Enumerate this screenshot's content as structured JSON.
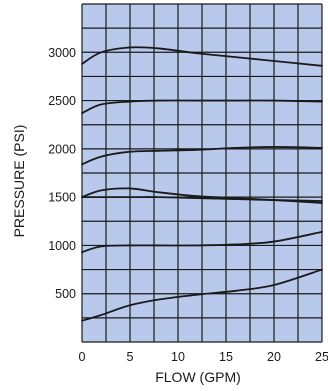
{
  "chart_data": {
    "type": "line",
    "title": "",
    "xlabel": "FLOW (GPM)",
    "ylabel": "PRESSURE (PSI)",
    "xlim": [
      0,
      25
    ],
    "ylim": [
      0,
      3500
    ],
    "x_ticks": [
      "0",
      "5",
      "10",
      "15",
      "20",
      "25"
    ],
    "y_ticks": [
      "500",
      "1000",
      "1500",
      "2000",
      "2500",
      "3000"
    ],
    "x_tick_values": [
      0,
      5,
      10,
      15,
      20,
      25
    ],
    "y_tick_values": [
      500,
      1000,
      1500,
      2000,
      2500,
      3000
    ],
    "grid": true,
    "grid_step_x": 2.5,
    "grid_step_y": 250,
    "legend": "none",
    "series": [
      {
        "x": [
          0,
          2,
          5,
          8,
          12,
          16,
          20,
          25
        ],
        "values": [
          2880,
          3000,
          3050,
          3040,
          2990,
          2950,
          2910,
          2860
        ]
      },
      {
        "x": [
          0,
          2,
          5,
          8,
          12,
          16,
          20,
          25
        ],
        "values": [
          2370,
          2460,
          2490,
          2500,
          2500,
          2500,
          2500,
          2490
        ]
      },
      {
        "x": [
          0,
          2,
          5,
          8,
          12,
          16,
          20,
          25
        ],
        "values": [
          1840,
          1920,
          1970,
          1980,
          1990,
          2010,
          2020,
          2010
        ]
      },
      {
        "x": [
          0,
          2,
          5,
          8,
          12,
          16,
          20,
          25
        ],
        "values": [
          1500,
          1570,
          1590,
          1550,
          1510,
          1490,
          1470,
          1440
        ]
      },
      {
        "x": [
          0,
          2,
          5,
          8,
          12,
          16,
          20,
          25
        ],
        "values": [
          1500,
          1500,
          1500,
          1500,
          1490,
          1480,
          1470,
          1460
        ]
      },
      {
        "x": [
          0,
          2,
          5,
          8,
          12,
          16,
          20,
          25
        ],
        "values": [
          930,
          990,
          1000,
          1000,
          1000,
          1010,
          1040,
          1140
        ]
      },
      {
        "x": [
          0,
          2,
          5,
          8,
          12,
          16,
          20,
          25
        ],
        "values": [
          220,
          280,
          380,
          440,
          490,
          530,
          590,
          750
        ]
      }
    ],
    "colors": {
      "plot_background": "#b8c9ec",
      "grid": "#1a1a1a",
      "curves": "#1a1a1a",
      "text": "#1a1a1a"
    }
  }
}
